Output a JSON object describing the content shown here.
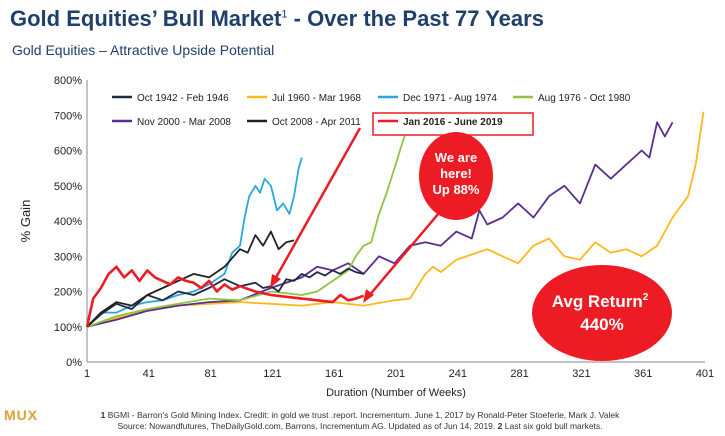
{
  "header": {
    "title_main": "Gold Equities’ Bull Market",
    "title_sup": "1",
    "title_tail": " - Over the Past 77 Years",
    "subtitle": "Gold Equities – Attractive Upside Potential"
  },
  "logo": "MUX",
  "footnote": {
    "line1_num": "1",
    "line1": " BGMI - Barron's Gold Mining Index. Credit: in gold we trust .report. Incrementum. June 1, 2017 by Ronald-Peter Stoeferle, Mark J. Valek",
    "line2_a": "Source: Nowandfutures, TheDailyGold.com, Barrons, Incrementum AG. Updated as of Jun 14, 2019. ",
    "line2_num": "2",
    "line2_b": " Last six gold bull markets."
  },
  "callouts": {
    "here_line1": "We are",
    "here_line2": "here!",
    "here_line3": "Up 88%",
    "avg_line1": "Avg Return",
    "avg_sup": "2",
    "avg_line2": "440%"
  },
  "chart_data": {
    "type": "line",
    "xlabel": "Duration (Number of Weeks)",
    "ylabel": "% Gain",
    "xlim": [
      1,
      401
    ],
    "ylim": [
      0,
      800
    ],
    "xticks": [
      1,
      41,
      81,
      121,
      161,
      201,
      241,
      281,
      321,
      361,
      401
    ],
    "yticks": [
      0,
      100,
      200,
      300,
      400,
      500,
      600,
      700,
      800
    ],
    "ytick_labels": [
      "0%",
      "100%",
      "200%",
      "300%",
      "400%",
      "500%",
      "600%",
      "700%",
      "800%"
    ],
    "grid": false,
    "legend": "top",
    "series": [
      {
        "name": "Oct 1942 - Feb 1946",
        "color": "#1f2a44",
        "x": [
          1,
          10,
          20,
          30,
          40,
          50,
          60,
          70,
          80,
          90,
          100,
          110,
          115,
          120,
          125,
          130,
          135,
          140,
          145,
          150,
          155,
          160,
          165,
          170,
          175,
          180
        ],
        "y": [
          100,
          135,
          165,
          150,
          190,
          175,
          200,
          190,
          210,
          235,
          215,
          225,
          210,
          215,
          200,
          235,
          230,
          250,
          240,
          255,
          245,
          260,
          250,
          265,
          255,
          250
        ]
      },
      {
        "name": "Jul 1960 - Mar 1968",
        "color": "#ffb81c",
        "x": [
          1,
          20,
          40,
          60,
          80,
          100,
          120,
          140,
          160,
          180,
          200,
          210,
          220,
          225,
          230,
          240,
          250,
          260,
          270,
          280,
          290,
          300,
          310,
          320,
          330,
          340,
          350,
          360,
          370,
          380,
          390,
          395,
          400
        ],
        "y": [
          100,
          125,
          145,
          160,
          165,
          170,
          165,
          160,
          170,
          160,
          175,
          180,
          250,
          270,
          255,
          290,
          305,
          320,
          300,
          280,
          330,
          350,
          300,
          290,
          340,
          310,
          320,
          300,
          330,
          410,
          470,
          560,
          710
        ]
      },
      {
        "name": "Dec 1971 - Aug 1974",
        "color": "#29a8e0",
        "x": [
          1,
          10,
          20,
          30,
          40,
          50,
          60,
          70,
          80,
          90,
          95,
          100,
          103,
          106,
          110,
          113,
          116,
          120,
          124,
          128,
          132,
          135,
          138,
          140
        ],
        "y": [
          100,
          140,
          140,
          160,
          170,
          175,
          190,
          200,
          220,
          250,
          310,
          330,
          410,
          470,
          500,
          480,
          520,
          500,
          430,
          450,
          420,
          470,
          550,
          580
        ]
      },
      {
        "name": "Aug 1976 - Oct 1980",
        "color": "#8cc63e",
        "x": [
          1,
          20,
          40,
          60,
          80,
          100,
          120,
          140,
          150,
          160,
          170,
          175,
          180,
          185,
          190,
          195,
          200,
          205,
          208
        ],
        "y": [
          100,
          130,
          150,
          165,
          180,
          175,
          200,
          190,
          200,
          230,
          260,
          300,
          330,
          340,
          420,
          480,
          550,
          620,
          660
        ]
      },
      {
        "name": "Nov 2000 - Mar 2008",
        "color": "#5b2d90",
        "x": [
          1,
          20,
          40,
          60,
          80,
          100,
          120,
          140,
          150,
          160,
          170,
          180,
          190,
          200,
          210,
          220,
          230,
          240,
          250,
          255,
          260,
          270,
          280,
          290,
          300,
          310,
          320,
          330,
          340,
          350,
          360,
          365,
          370,
          375,
          380
        ],
        "y": [
          100,
          120,
          145,
          160,
          170,
          175,
          210,
          240,
          270,
          260,
          280,
          250,
          300,
          280,
          330,
          340,
          330,
          370,
          350,
          430,
          390,
          410,
          450,
          410,
          470,
          500,
          450,
          560,
          520,
          560,
          600,
          580,
          680,
          640,
          680
        ]
      },
      {
        "name": "Oct 2008 - Apr 2011",
        "color": "#222222",
        "x": [
          1,
          10,
          20,
          30,
          40,
          50,
          60,
          70,
          80,
          90,
          100,
          105,
          110,
          115,
          120,
          125,
          130,
          135
        ],
        "y": [
          100,
          140,
          170,
          160,
          190,
          210,
          230,
          250,
          240,
          270,
          320,
          310,
          360,
          330,
          370,
          320,
          340,
          345
        ]
      },
      {
        "name": "Jan 2016 - June 2019",
        "color": "#ed1c24",
        "x": [
          1,
          5,
          10,
          15,
          20,
          25,
          30,
          35,
          40,
          45,
          50,
          55,
          60,
          65,
          70,
          75,
          80,
          85,
          90,
          95,
          100,
          110,
          120,
          130,
          140,
          150,
          160,
          165,
          170,
          175,
          180
        ],
        "y": [
          100,
          180,
          210,
          250,
          270,
          240,
          260,
          230,
          260,
          240,
          230,
          220,
          240,
          230,
          225,
          210,
          230,
          200,
          220,
          205,
          215,
          200,
          190,
          185,
          180,
          175,
          170,
          190,
          175,
          180,
          188
        ]
      }
    ]
  }
}
